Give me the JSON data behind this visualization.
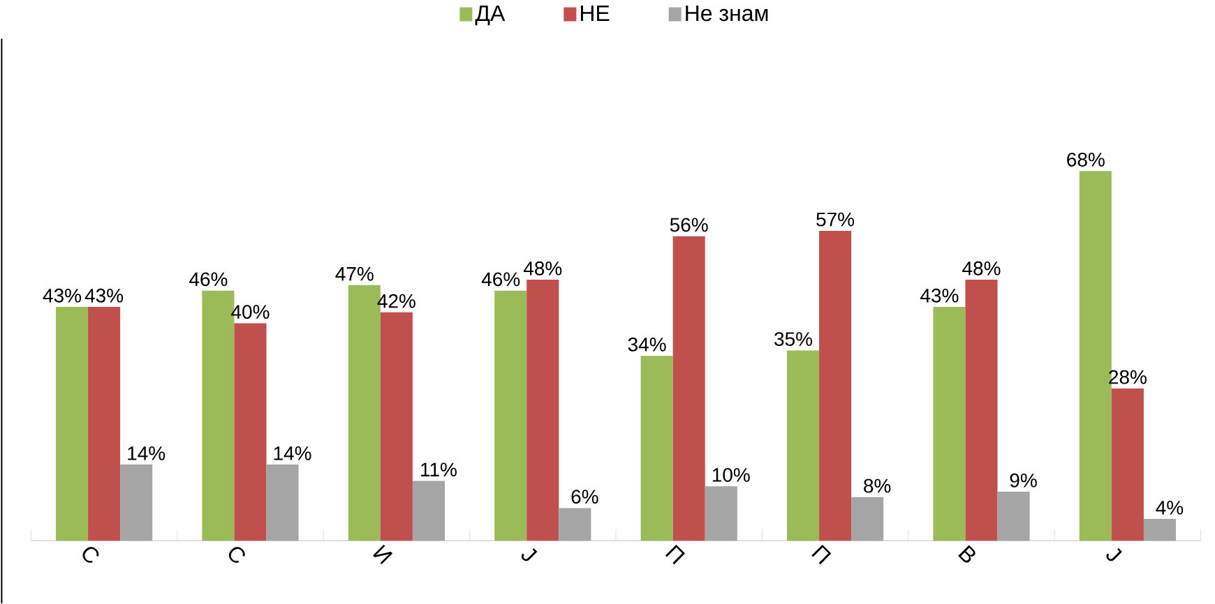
{
  "chart_data": {
    "type": "bar",
    "categories": [
      "С",
      "С",
      "И",
      "Ј",
      "П",
      "П",
      "В",
      "Ј"
    ],
    "legend": "top",
    "series": [
      {
        "name": "ДА",
        "color": "#9bbb59",
        "values": [
          43,
          46,
          47,
          46,
          34,
          35,
          43,
          68
        ],
        "value_labels": [
          "43%",
          "46%",
          "47%",
          "46%",
          "34%",
          "35%",
          "43%",
          "68%"
        ]
      },
      {
        "name": "НЕ",
        "color": "#c0504d",
        "values": [
          43,
          40,
          42,
          48,
          56,
          57,
          48,
          28
        ],
        "value_labels": [
          "43%",
          "40%",
          "42%",
          "48%",
          "56%",
          "57%",
          "48%",
          "28%"
        ]
      },
      {
        "name": "Не знам",
        "color": "#a5a5a5",
        "values": [
          14,
          14,
          11,
          6,
          10,
          8,
          9,
          4
        ],
        "value_labels": [
          "14%",
          "14%",
          "11%",
          "6%",
          "10%",
          "8%",
          "9%",
          "4%"
        ]
      }
    ]
  }
}
